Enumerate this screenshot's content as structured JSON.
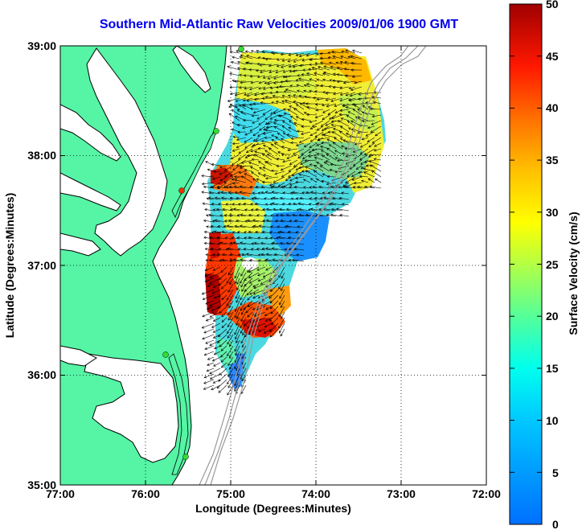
{
  "title": "Southern Mid-Atlantic Raw Velocities 2009/01/06 1900 GMT",
  "xlabel": "Longitude (Degrees:Minutes)",
  "ylabel": "Latitude (Degrees:Minutes)",
  "colorbar_label": "Surface Velocity (cm/s)",
  "x_ticks": [
    "77:00",
    "76:00",
    "75:00",
    "74:00",
    "73:00",
    "72:00"
  ],
  "y_ticks": [
    "39:00",
    "38:00",
    "37:00",
    "36:00",
    "35:00"
  ],
  "colorbar_ticks": [
    "50",
    "45",
    "40",
    "35",
    "30",
    "25",
    "20",
    "15",
    "10",
    "5",
    "0"
  ],
  "colors": {
    "land": "#55f5a5",
    "coastline": "#000000",
    "bathymetry": "#999999",
    "station": "#33dd33",
    "station_alt": "#ee3300",
    "title": "#0000ee"
  },
  "chart_data": {
    "type": "heatmap",
    "title": "Southern Mid-Atlantic Raw Velocities 2009/01/06 1900 GMT",
    "xlabel": "Longitude (Degrees:Minutes)",
    "ylabel": "Latitude (Degrees:Minutes)",
    "xlim": [
      "77:00",
      "72:00"
    ],
    "ylim": [
      "35:00",
      "39:00"
    ],
    "colorbar": {
      "label": "Surface Velocity (cm/s)",
      "range": [
        0,
        50
      ],
      "colormap": "jet"
    },
    "grid": true
  }
}
